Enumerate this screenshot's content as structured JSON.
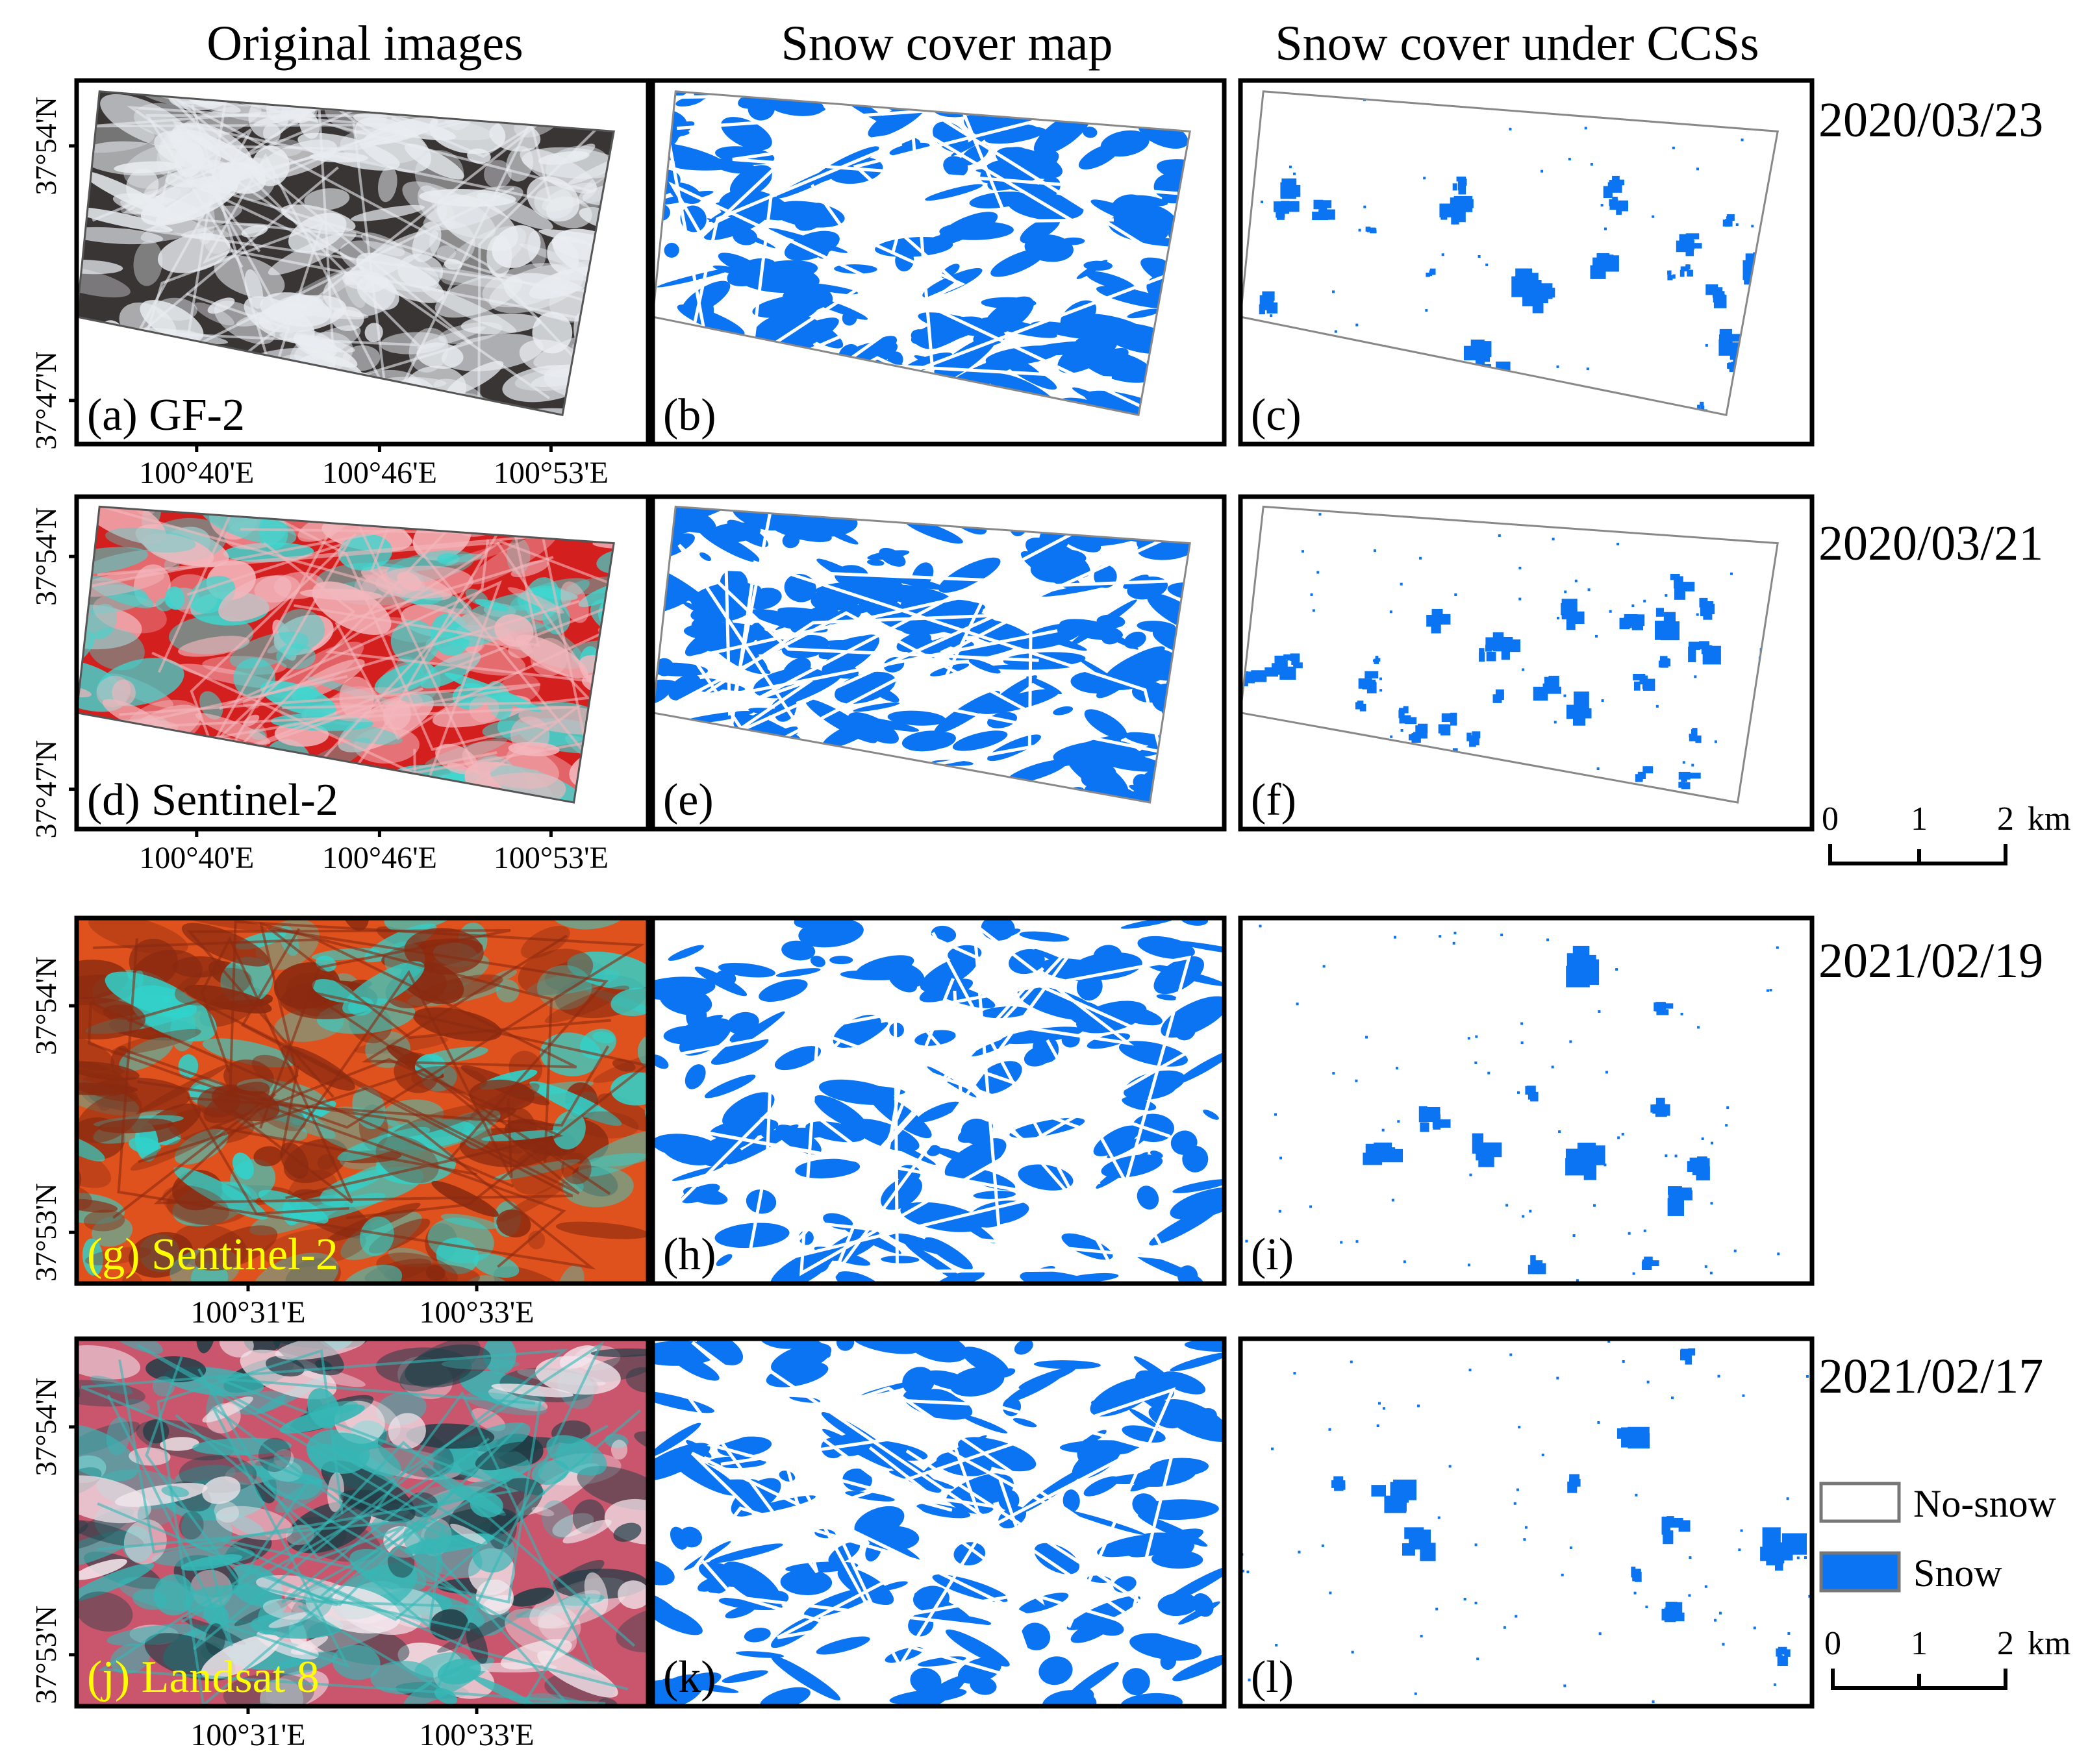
{
  "columns": [
    "Original images",
    "Snow cover map",
    "Snow cover under CCSs"
  ],
  "rows": [
    {
      "date": "2020/03/23",
      "labels": [
        "(a) GF-2",
        "(b)",
        "(c)"
      ],
      "lat_ticks": [
        "37°54'N",
        "37°47'N"
      ],
      "lon_ticks": [
        "100°40'E",
        "100°46'E",
        "100°53'E"
      ],
      "original_palette": [
        "#3a3535",
        "#e9edf1"
      ],
      "label_color": "#000000",
      "snow_fraction": 0.55
    },
    {
      "date": "2020/03/21",
      "labels": [
        "(d) Sentinel-2",
        "(e)",
        "(f)"
      ],
      "lat_ticks": [
        "37°54'N",
        "37°47'N"
      ],
      "lon_ticks": [
        "100°40'E",
        "100°46'E",
        "100°53'E"
      ],
      "original_palette": [
        "#d41f1f",
        "#3fd6cf",
        "#f3b7bd"
      ],
      "label_color": "#000000",
      "snow_fraction": 0.6
    },
    {
      "date": "2021/02/19",
      "labels": [
        "(g) Sentinel-2",
        "(h)",
        "(i)"
      ],
      "lat_ticks": [
        "37°54'N",
        "37°53'N"
      ],
      "lon_ticks": [
        "100°31'E",
        "100°33'E"
      ],
      "original_palette": [
        "#e0521d",
        "#2fd3cc",
        "#8a2a10"
      ],
      "label_color": "#ffff00",
      "snow_fraction": 0.35
    },
    {
      "date": "2021/02/17",
      "labels": [
        "(j) Landsat 8",
        "(k)",
        "(l)"
      ],
      "lat_ticks": [
        "37°54'N",
        "37°53'N"
      ],
      "lon_ticks": [
        "100°31'E",
        "100°33'E"
      ],
      "original_palette": [
        "#c9566d",
        "#f2e6ec",
        "#1f3d46",
        "#36b7b6"
      ],
      "label_color": "#ffff00",
      "snow_fraction": 0.4
    }
  ],
  "scale_bars": [
    {
      "ticks": [
        "0",
        "1",
        "2"
      ],
      "unit": "km"
    },
    {
      "ticks": [
        "0",
        "1",
        "2"
      ],
      "unit": "km"
    }
  ],
  "legend": [
    {
      "label": "No-snow",
      "color": "#ffffff"
    },
    {
      "label": "Snow",
      "color": "#0a74f3"
    }
  ],
  "colors": {
    "snow": "#0a74f3",
    "frame": "#000000",
    "boundary": "#888888"
  }
}
